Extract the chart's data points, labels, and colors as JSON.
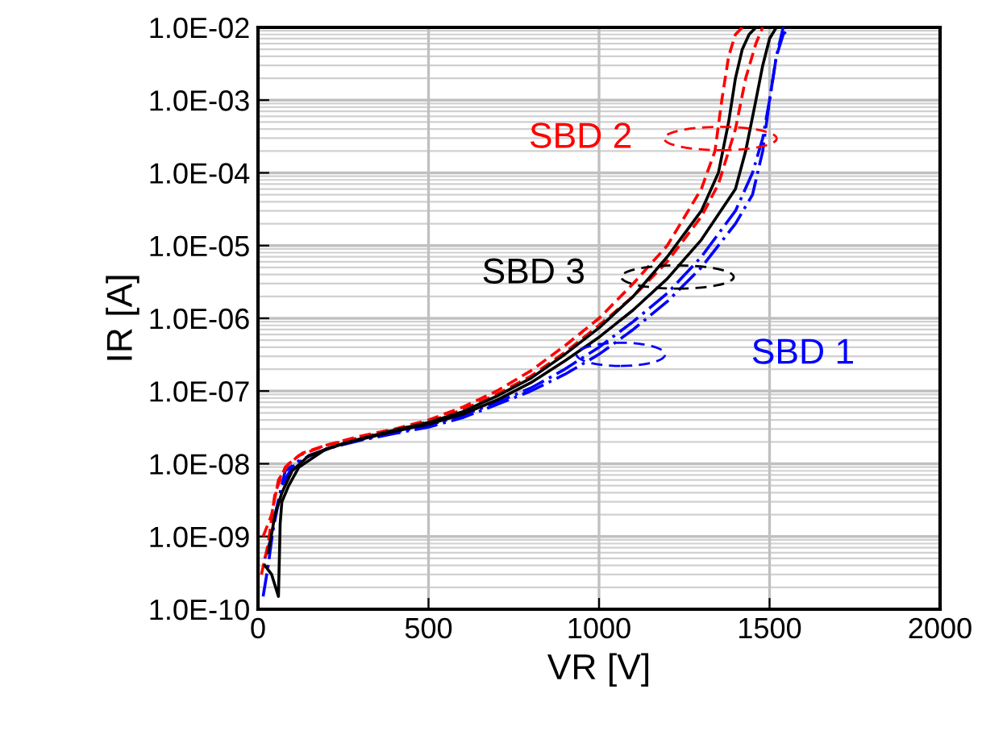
{
  "chart_data": {
    "type": "line",
    "xlabel": "VR [V]",
    "ylabel": "IR [A]",
    "log": "y",
    "xlim": [
      0,
      2000
    ],
    "xticks": [
      0,
      500,
      1000,
      1500,
      2000
    ],
    "ylim": [
      1e-10,
      0.01
    ],
    "yticks": [
      {
        "value": 1e-10,
        "label": "1.0E-10"
      },
      {
        "value": 1e-09,
        "label": "1.0E-09"
      },
      {
        "value": 1e-08,
        "label": "1.0E-08"
      },
      {
        "value": 1e-07,
        "label": "1.0E-07"
      },
      {
        "value": 1e-06,
        "label": "1.0E-06"
      },
      {
        "value": 1e-05,
        "label": "1.0E-05"
      },
      {
        "value": 0.0001,
        "label": "1.0E-04"
      },
      {
        "value": 0.001,
        "label": "1.0E-03"
      },
      {
        "value": 0.01,
        "label": "1.0E-02"
      }
    ],
    "grid": true,
    "legend": false,
    "series": [
      {
        "color": "#0000ff",
        "line_style": "dashdot",
        "x": [
          15,
          30,
          50,
          80,
          120,
          200,
          300,
          400,
          500,
          600,
          700,
          800,
          900,
          1000,
          1100,
          1200,
          1300,
          1400,
          1450,
          1480,
          1500,
          1520,
          1540,
          1560
        ],
        "values": [
          1.5e-10,
          4e-10,
          2e-09,
          8e-09,
          1.1e-08,
          1.6e-08,
          2.1e-08,
          2.6e-08,
          3.2e-08,
          4.3e-08,
          6.5e-08,
          1e-07,
          1.7e-07,
          3.2e-07,
          7e-07,
          1.7e-06,
          5e-06,
          2e-05,
          5e-05,
          0.0002,
          0.001,
          0.004,
          0.008,
          0.01
        ]
      },
      {
        "color": "#0000ff",
        "line_style": "dashdot",
        "x": [
          20,
          40,
          70,
          100,
          150,
          250,
          400,
          500,
          600,
          700,
          800,
          900,
          1000,
          1100,
          1200,
          1300,
          1400,
          1450,
          1480,
          1500,
          1520,
          1540
        ],
        "values": [
          5e-10,
          1e-09,
          5e-09,
          9e-09,
          1.3e-08,
          1.9e-08,
          2.7e-08,
          3.4e-08,
          4.6e-08,
          7e-08,
          1.1e-07,
          2e-07,
          4e-07,
          9e-07,
          2.2e-06,
          7e-06,
          3e-05,
          0.0001,
          0.0003,
          0.001,
          0.004,
          0.01
        ]
      },
      {
        "color": "#ff0000",
        "line_style": "dashed",
        "x": [
          10,
          30,
          50,
          80,
          120,
          200,
          300,
          400,
          500,
          600,
          700,
          800,
          900,
          1000,
          1100,
          1200,
          1300,
          1340,
          1360,
          1380,
          1400,
          1420
        ],
        "values": [
          3e-10,
          8e-10,
          4e-09,
          9e-09,
          1.3e-08,
          1.8e-08,
          2.4e-08,
          3e-08,
          4e-08,
          6e-08,
          1e-07,
          1.9e-07,
          4.2e-07,
          1e-06,
          3e-06,
          1e-05,
          6e-05,
          0.0002,
          0.001,
          0.004,
          0.008,
          0.01
        ]
      },
      {
        "color": "#ff0000",
        "line_style": "dashed",
        "x": [
          15,
          40,
          60,
          90,
          130,
          200,
          300,
          400,
          500,
          600,
          700,
          800,
          900,
          1000,
          1100,
          1200,
          1300,
          1350,
          1400,
          1430,
          1460,
          1480
        ],
        "values": [
          1e-09,
          2e-09,
          6e-09,
          1e-08,
          1.4e-08,
          1.8e-08,
          2.3e-08,
          2.9e-08,
          3.8e-08,
          5.5e-08,
          9e-08,
          1.6e-07,
          3.4e-07,
          8e-07,
          2e-06,
          6e-06,
          2.5e-05,
          7e-05,
          0.0004,
          0.002,
          0.006,
          0.01
        ]
      },
      {
        "color": "#000000",
        "line_style": "solid",
        "x": [
          20,
          40,
          60,
          65,
          70,
          90,
          120,
          200,
          300,
          400,
          500,
          600,
          700,
          800,
          900,
          1000,
          1100,
          1200,
          1300,
          1350,
          1380,
          1400,
          1420,
          1440,
          1460
        ],
        "values": [
          4e-10,
          3e-10,
          1.5e-10,
          1.5e-09,
          3e-09,
          5e-09,
          9e-09,
          1.6e-08,
          2.2e-08,
          2.9e-08,
          3.7e-08,
          5.2e-08,
          8.5e-08,
          1.5e-07,
          3.2e-07,
          7.4e-07,
          2e-06,
          7e-06,
          3e-05,
          0.0001,
          0.0005,
          0.002,
          0.005,
          0.008,
          0.01
        ]
      },
      {
        "color": "#000000",
        "line_style": "solid",
        "x": [
          30,
          50,
          70,
          100,
          150,
          250,
          400,
          500,
          600,
          700,
          800,
          900,
          1000,
          1100,
          1200,
          1300,
          1400,
          1430,
          1460,
          1480,
          1500,
          1520
        ],
        "values": [
          6e-10,
          2e-09,
          4e-09,
          8e-09,
          1.3e-08,
          1.9e-08,
          2.8e-08,
          3.5e-08,
          4.8e-08,
          7.5e-08,
          1.3e-07,
          2.6e-07,
          5.5e-07,
          1.3e-06,
          3.5e-06,
          1.2e-05,
          6e-05,
          0.0002,
          0.001,
          0.003,
          0.007,
          0.01
        ]
      }
    ],
    "annotations": [
      "SBD 2",
      "SBD 3",
      "SBD 1"
    ]
  }
}
